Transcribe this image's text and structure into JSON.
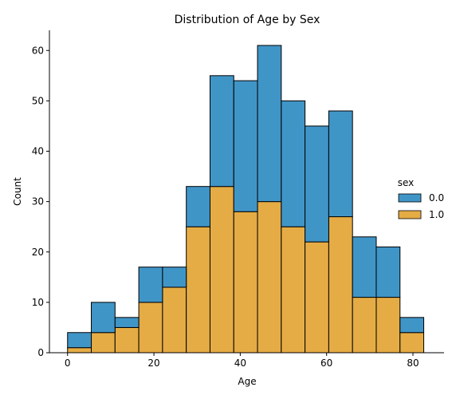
{
  "chart_data": {
    "type": "bar",
    "stacked": true,
    "title": "Distribution of Age by Sex",
    "xlabel": "Age",
    "ylabel": "Count",
    "xlim": [
      -4.2,
      87.2
    ],
    "ylim": [
      0,
      64
    ],
    "xticks": [
      0,
      20,
      40,
      60,
      80
    ],
    "yticks": [
      0,
      10,
      20,
      30,
      40,
      50,
      60
    ],
    "bin_edges": [
      0,
      5.5,
      11,
      16.5,
      22,
      27.5,
      33,
      38.5,
      44,
      49.5,
      55,
      60.5,
      66,
      71.5,
      77,
      82.5
    ],
    "series": [
      {
        "name": "1.0",
        "color": "#e5ac45",
        "values": [
          1,
          4,
          5,
          10,
          13,
          25,
          33,
          28,
          30,
          25,
          22,
          27,
          11,
          11,
          4
        ]
      },
      {
        "name": "0.0",
        "color": "#4095c7",
        "values": [
          3,
          6,
          2,
          7,
          4,
          8,
          22,
          26,
          31,
          25,
          23,
          21,
          12,
          10,
          3
        ]
      }
    ],
    "legend": {
      "title": "sex",
      "placement": "right",
      "entries": [
        {
          "label": "0.0",
          "color": "#4095c7"
        },
        {
          "label": "1.0",
          "color": "#e5ac45"
        }
      ]
    },
    "grid": false
  }
}
